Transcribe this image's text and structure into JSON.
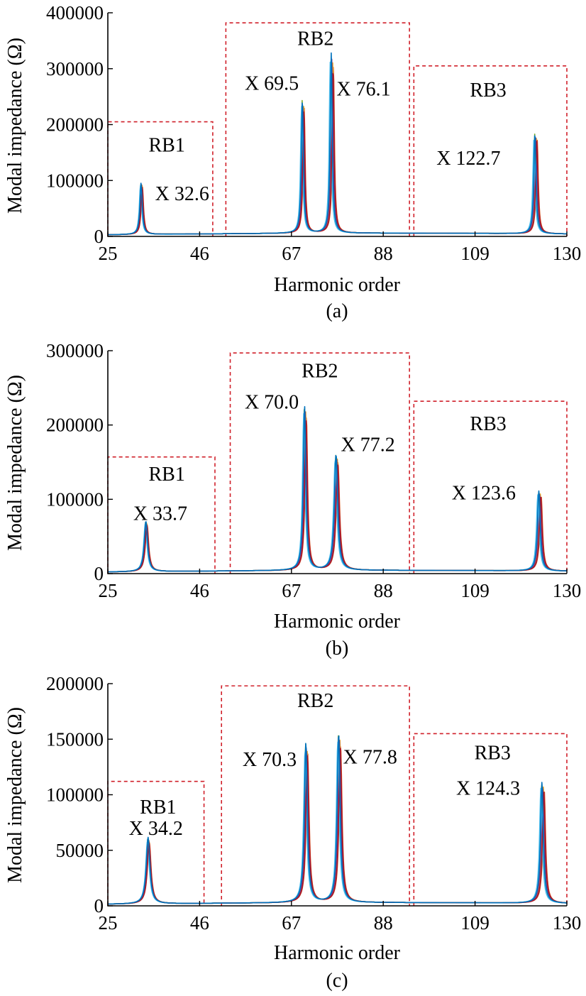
{
  "chart_data": [
    {
      "type": "line",
      "panel": "(a)",
      "xlabel": "Harmonic order",
      "ylabel": "Modal impedance (Ω)",
      "xlim": [
        25,
        130
      ],
      "ylim": [
        0,
        400000
      ],
      "xticks": [
        "25",
        "46",
        "67",
        "88",
        "109",
        "130"
      ],
      "yticks": [
        "0",
        "100000",
        "200000",
        "300000",
        "400000"
      ],
      "series_colors": [
        "#d95319",
        "#edb120",
        "#7e2f8e",
        "#77ac30",
        "#4dbeee",
        "#a2142f",
        "#0072bd"
      ],
      "peaks": [
        {
          "x": 32.6,
          "y": 92000,
          "width": 0.32,
          "spread": 0.55
        },
        {
          "x": 69.5,
          "y": 240000,
          "width": 0.28,
          "spread": 0.75
        },
        {
          "x": 76.1,
          "y": 322000,
          "width": 0.28,
          "spread": 0.9
        },
        {
          "x": 122.7,
          "y": 180000,
          "width": 0.3,
          "spread": 0.95
        }
      ],
      "regions": [
        {
          "label": "RB1",
          "x_range": [
            25,
            49
          ],
          "y_top": 205000
        },
        {
          "label": "RB2",
          "x_range": [
            52,
            94
          ],
          "y_top": 382000
        },
        {
          "label": "RB3",
          "x_range": [
            95,
            130
          ],
          "y_top": 305000
        }
      ],
      "annotations": [
        {
          "text": "RB1",
          "x": 38.5,
          "y": 152000
        },
        {
          "text": "X 32.6",
          "x": 42.0,
          "y": 65000
        },
        {
          "text": "RB2",
          "x": 72.5,
          "y": 342000
        },
        {
          "text": "X 69.5",
          "x": 62.5,
          "y": 262000
        },
        {
          "text": "X 76.1",
          "x": 83.5,
          "y": 252000
        },
        {
          "text": "RB3",
          "x": 112.0,
          "y": 250000
        },
        {
          "text": "X 122.7",
          "x": 107.5,
          "y": 128000
        }
      ]
    },
    {
      "type": "line",
      "panel": "(b)",
      "xlabel": "Harmonic order",
      "ylabel": "Modal impedance (Ω)",
      "xlim": [
        25,
        130
      ],
      "ylim": [
        0,
        300000
      ],
      "xticks": [
        "25",
        "46",
        "67",
        "88",
        "109",
        "130"
      ],
      "yticks": [
        "0",
        "100000",
        "200000",
        "300000"
      ],
      "series_colors": [
        "#d95319",
        "#edb120",
        "#7e2f8e",
        "#77ac30",
        "#4dbeee",
        "#a2142f",
        "#0072bd"
      ],
      "peaks": [
        {
          "x": 33.7,
          "y": 68000,
          "width": 0.45,
          "spread": 0.5
        },
        {
          "x": 70.0,
          "y": 222000,
          "width": 0.35,
          "spread": 0.75
        },
        {
          "x": 77.2,
          "y": 156000,
          "width": 0.45,
          "spread": 0.8
        },
        {
          "x": 123.6,
          "y": 108000,
          "width": 0.38,
          "spread": 0.95
        }
      ],
      "regions": [
        {
          "label": "RB1",
          "x_range": [
            25,
            49.5
          ],
          "y_top": 157000
        },
        {
          "label": "RB2",
          "x_range": [
            53,
            94
          ],
          "y_top": 297000
        },
        {
          "label": "RB3",
          "x_range": [
            95,
            130
          ],
          "y_top": 232000
        }
      ],
      "annotations": [
        {
          "text": "RB1",
          "x": 38.5,
          "y": 125000
        },
        {
          "text": "X 33.7",
          "x": 37.0,
          "y": 72000
        },
        {
          "text": "RB2",
          "x": 73.5,
          "y": 264000
        },
        {
          "text": "X 70.0",
          "x": 62.5,
          "y": 222000
        },
        {
          "text": "X 77.2",
          "x": 84.5,
          "y": 165000
        },
        {
          "text": "RB3",
          "x": 112.0,
          "y": 193000
        },
        {
          "text": "X 123.6",
          "x": 111.0,
          "y": 100000
        }
      ]
    },
    {
      "type": "line",
      "panel": "(c)",
      "xlabel": "Harmonic order",
      "ylabel": "Modal impedance (Ω)",
      "xlim": [
        25,
        130
      ],
      "ylim": [
        0,
        200000
      ],
      "xticks": [
        "25",
        "46",
        "67",
        "88",
        "109",
        "130"
      ],
      "yticks": [
        "0",
        "50000",
        "100000",
        "150000",
        "200000"
      ],
      "series_colors": [
        "#d95319",
        "#edb120",
        "#7e2f8e",
        "#77ac30",
        "#4dbeee",
        "#a2142f",
        "#0072bd"
      ],
      "peaks": [
        {
          "x": 34.2,
          "y": 60000,
          "width": 0.5,
          "spread": 0.5
        },
        {
          "x": 70.3,
          "y": 144000,
          "width": 0.4,
          "spread": 0.75
        },
        {
          "x": 77.8,
          "y": 152000,
          "width": 0.4,
          "spread": 0.8
        },
        {
          "x": 124.3,
          "y": 109000,
          "width": 0.38,
          "spread": 0.95
        }
      ],
      "regions": [
        {
          "label": "RB1",
          "x_range": [
            25,
            47
          ],
          "y_top": 112000
        },
        {
          "label": "RB2",
          "x_range": [
            51,
            94
          ],
          "y_top": 198000
        },
        {
          "label": "RB3",
          "x_range": [
            95,
            130
          ],
          "y_top": 155000
        }
      ],
      "annotations": [
        {
          "text": "RB1",
          "x": 36.5,
          "y": 83000
        },
        {
          "text": "X 34.2",
          "x": 36.0,
          "y": 64000
        },
        {
          "text": "RB2",
          "x": 72.5,
          "y": 179000
        },
        {
          "text": "X 70.3",
          "x": 62.0,
          "y": 126000
        },
        {
          "text": "X 77.8",
          "x": 85.0,
          "y": 128000
        },
        {
          "text": "RB3",
          "x": 113.0,
          "y": 132000
        },
        {
          "text": "X 124.3",
          "x": 112.0,
          "y": 100000
        }
      ]
    }
  ]
}
